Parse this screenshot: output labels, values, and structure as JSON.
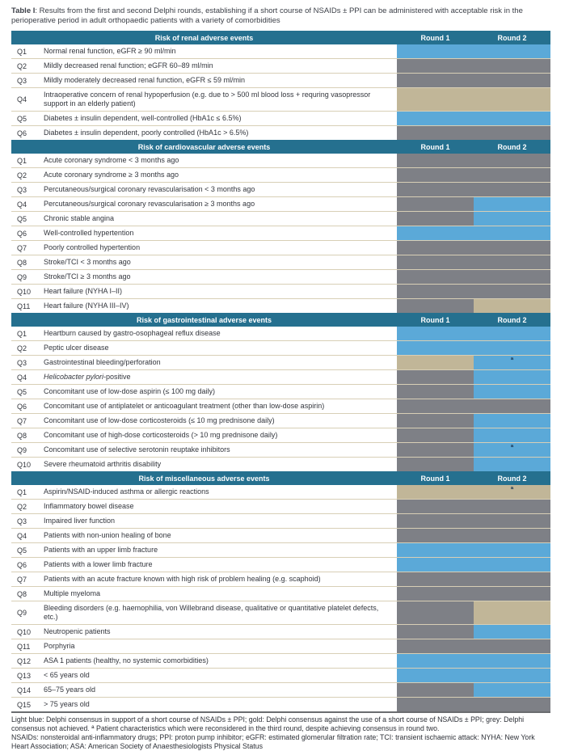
{
  "caption": {
    "label": "Table I",
    "text": ": Results from the first and second Delphi rounds, establishing if a short course of NSAIDs ± PPI can be administered with acceptable risk in the perioperative period in adult orthopaedic patients with a variety of comorbidities"
  },
  "columns": {
    "round1": "Round 1",
    "round2": "Round 2"
  },
  "legend_colors": {
    "blue": "#5BA9D8",
    "gold": "#C1B698",
    "grey": "#7E8086",
    "header_teal": "#25708F"
  },
  "marker_symbol": "ª",
  "sections": [
    {
      "title": "Risk of renal adverse events",
      "rows": [
        {
          "q": "Q1",
          "text": "Normal renal function, eGFR ≥ 90 ml/min",
          "r1": "blue",
          "r2": "blue"
        },
        {
          "q": "Q2",
          "text": "Mildly decreased renal function; eGFR 60–89 ml/min",
          "r1": "grey",
          "r2": "grey"
        },
        {
          "q": "Q3",
          "text": "Mildly moderately decreased renal function, eGFR ≤ 59 ml/min",
          "r1": "grey",
          "r2": "grey"
        },
        {
          "q": "Q4",
          "text": "Intraoperative concern of renal hypoperfusion (e.g. due to > 500 ml blood loss + requring vasopressor support in an elderly patient)",
          "r1": "gold",
          "r2": "gold"
        },
        {
          "q": "Q5",
          "text": "Diabetes ± insulin dependent, well-controlled (HbA1c ≤ 6.5%)",
          "r1": "blue",
          "r2": "blue"
        },
        {
          "q": "Q6",
          "text": "Diabetes ± insulin dependent, poorly controlled (HbA1c > 6.5%)",
          "r1": "grey",
          "r2": "grey"
        }
      ]
    },
    {
      "title": "Risk of cardiovascular adverse events",
      "rows": [
        {
          "q": "Q1",
          "text": "Acute coronary syndrome < 3 months ago",
          "r1": "grey",
          "r2": "grey"
        },
        {
          "q": "Q2",
          "text": "Acute coronary syndrome ≥ 3 months ago",
          "r1": "grey",
          "r2": "grey"
        },
        {
          "q": "Q3",
          "text": "Percutaneous/surgical coronary revascularisation < 3 months ago",
          "r1": "grey",
          "r2": "grey"
        },
        {
          "q": "Q4",
          "text": "Percutaneous/surgical coronary revascularisation ≥ 3 months ago",
          "r1": "grey",
          "r2": "blue"
        },
        {
          "q": "Q5",
          "text": "Chronic stable angina",
          "r1": "grey",
          "r2": "blue"
        },
        {
          "q": "Q6",
          "text": "Well-controlled hypertention",
          "r1": "blue",
          "r2": "blue"
        },
        {
          "q": "Q7",
          "text": "Poorly controlled hypertention",
          "r1": "grey",
          "r2": "grey"
        },
        {
          "q": "Q8",
          "text": "Stroke/TCI < 3 months ago",
          "r1": "grey",
          "r2": "grey"
        },
        {
          "q": "Q9",
          "text": "Stroke/TCI ≥ 3 months ago",
          "r1": "grey",
          "r2": "grey"
        },
        {
          "q": "Q10",
          "text": "Heart failure (NYHA I–II)",
          "r1": "grey",
          "r2": "grey"
        },
        {
          "q": "Q11",
          "text": "Heart failure (NYHA III–IV)",
          "r1": "grey",
          "r2": "gold"
        }
      ]
    },
    {
      "title": "Risk of gastrointestinal adverse events",
      "rows": [
        {
          "q": "Q1",
          "text": "Heartburn caused by gastro-osophageal reflux disease",
          "r1": "blue",
          "r2": "blue"
        },
        {
          "q": "Q2",
          "text": "Peptic ulcer disease",
          "r1": "blue",
          "r2": "blue"
        },
        {
          "q": "Q3",
          "text": "Gastrointestinal bleeding/perforation",
          "r1": "gold",
          "r2": "blue",
          "r2_marker": "ª"
        },
        {
          "q": "Q4",
          "text_italic": "Helicobacter pylori",
          "text": "-positive",
          "r1": "grey",
          "r2": "blue"
        },
        {
          "q": "Q5",
          "text": "Concomitant use of low-dose aspirin (≤ 100 mg daily)",
          "r1": "grey",
          "r2": "blue"
        },
        {
          "q": "Q6",
          "text": "Concomitant use of antiplatelet or anticoagulant treatment (other than low-dose aspirin)",
          "r1": "grey",
          "r2": "grey"
        },
        {
          "q": "Q7",
          "text": "Concomitant use of low-dose corticosteroids (≤ 10 mg prednisone daily)",
          "r1": "grey",
          "r2": "blue"
        },
        {
          "q": "Q8",
          "text": "Concomitant use of high-dose corticosteroids  (> 10 mg prednisone daily)",
          "r1": "grey",
          "r2": "blue"
        },
        {
          "q": "Q9",
          "text": "Concomitant use of selective serotonin reuptake inhibitors",
          "r1": "grey",
          "r2": "blue",
          "r2_marker": "ª"
        },
        {
          "q": "Q10",
          "text": "Severe rheumatoid arthritis disability",
          "r1": "grey",
          "r2": "blue"
        }
      ]
    },
    {
      "title": "Risk of miscellaneous adverse events",
      "rows": [
        {
          "q": "Q1",
          "text": "Aspirin/NSAID-induced asthma or allergic reactions",
          "r1": "gold",
          "r2": "gold",
          "r2_marker": "ª"
        },
        {
          "q": "Q2",
          "text": "Inflammatory bowel disease",
          "r1": "grey",
          "r2": "grey"
        },
        {
          "q": "Q3",
          "text": "Impaired liver function",
          "r1": "grey",
          "r2": "grey"
        },
        {
          "q": "Q4",
          "text": "Patients with non-union healing of bone",
          "r1": "grey",
          "r2": "grey"
        },
        {
          "q": "Q5",
          "text": "Patients with an upper limb fracture",
          "r1": "blue",
          "r2": "blue"
        },
        {
          "q": "Q6",
          "text": "Patients with a lower limb fracture",
          "r1": "blue",
          "r2": "blue"
        },
        {
          "q": "Q7",
          "text": "Patients with an acute fracture known with high risk of problem healing (e.g. scaphoid)",
          "r1": "grey",
          "r2": "grey"
        },
        {
          "q": "Q8",
          "text": "Multiple myeloma",
          "r1": "grey",
          "r2": "grey"
        },
        {
          "q": "Q9",
          "text": "Bleeding disorders (e.g. haemophilia, von Willebrand disease, qualitative or quantitative platelet defects, etc.)",
          "r1": "grey",
          "r2": "gold"
        },
        {
          "q": "Q10",
          "text": "Neutropenic patients",
          "r1": "grey",
          "r2": "blue"
        },
        {
          "q": "Q11",
          "text": "Porphyria",
          "r1": "grey",
          "r2": "grey"
        },
        {
          "q": "Q12",
          "text": "ASA 1 patients (healthy, no systemic comorbidities)",
          "r1": "blue",
          "r2": "blue"
        },
        {
          "q": "Q13",
          "text": "< 65 years old",
          "r1": "blue",
          "r2": "blue"
        },
        {
          "q": "Q14",
          "text": "65–75 years old",
          "r1": "grey",
          "r2": "blue"
        },
        {
          "q": "Q15",
          "text": "> 75 years old",
          "r1": "grey",
          "r2": "grey"
        }
      ]
    }
  ],
  "footnotes": {
    "legend": "Light blue: Delphi consensus in support of a short course of NSAIDs ± PPI; gold: Delphi consensus against the use of a short course of NSAIDs ± PPI; grey: Delphi consensus not achieved. ª Patient characteristics which were reconsidered in the third round, despite achieving consensus in round two.",
    "abbreviations": "NSAIDs: nonsteroidal anti-inflammatory drugs; PPI: proton pump inhibitor; eGFR: estimated glomerular filtration rate; TCI: transient ischaemic attack: NYHA: New York Heart Association; ASA: American Society of Anaesthesiologists Physical Status"
  }
}
